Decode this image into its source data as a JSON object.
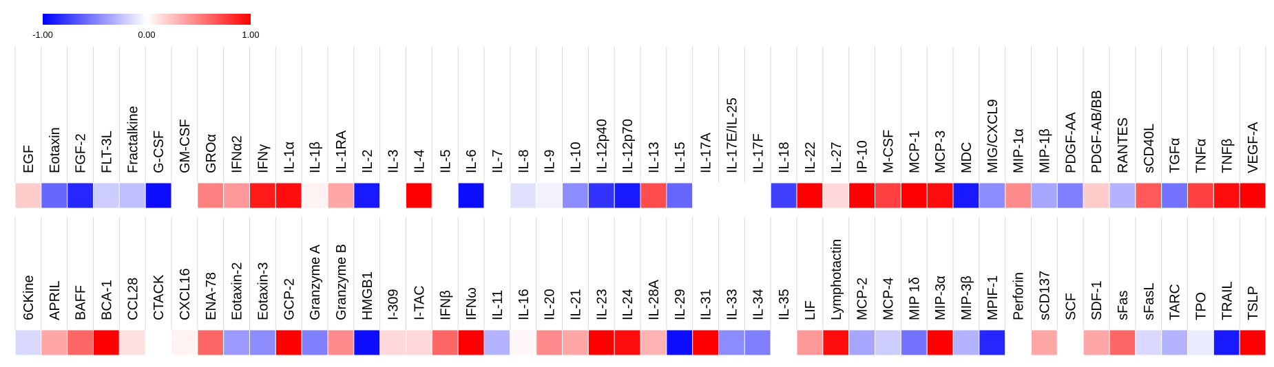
{
  "chart_data": {
    "type": "heatmap",
    "title": "",
    "xlabel": "",
    "ylabel": "",
    "color_scale": {
      "min": -1.0,
      "mid": 0.0,
      "max": 1.0,
      "min_label": "-1.00",
      "mid_label": "0.00",
      "max_label": "1.00",
      "colors": {
        "min": "#0000ff",
        "mid": "#ffffff",
        "max": "#ff0000"
      }
    },
    "rows": [
      {
        "categories": [
          "EGF",
          "Eotaxin",
          "FGF-2",
          "FLT-3L",
          "Fractalkine",
          "G-CSF",
          "GM-CSF",
          "GROα",
          "IFNα2",
          "IFNγ",
          "IL-1α",
          "IL-1β",
          "IL-1RA",
          "IL-2",
          "IL-3",
          "IL-4",
          "IL-5",
          "IL-6",
          "IL-7",
          "IL-8",
          "IL-9",
          "IL-10",
          "IL-12p40",
          "IL-12p70",
          "IL-13",
          "IL-15",
          "IL-17A",
          "IL-17E/IL-25",
          "IL-17F",
          "IL-18",
          "IL-22",
          "IL-27",
          "IP-10",
          "M-CSF",
          "MCP-1",
          "MCP-3",
          "MDC",
          "MIG/CXCL9",
          "MIP-1α",
          "MIP-1β",
          "PDGF-AA",
          "PDGF-AB/BB",
          "RANTES",
          "sCD40L",
          "TGFα",
          "TNFα",
          "TNFβ",
          "VEGF-A"
        ],
        "values": [
          0.2,
          -0.6,
          -0.85,
          -0.2,
          -0.25,
          -0.95,
          0.0,
          0.5,
          0.4,
          0.9,
          0.95,
          0.05,
          0.35,
          -0.9,
          0.0,
          1.0,
          0.0,
          -0.95,
          0.0,
          -0.12,
          -0.05,
          -0.45,
          -0.8,
          -0.9,
          0.7,
          -0.6,
          0.0,
          0.0,
          0.0,
          -0.75,
          1.0,
          0.15,
          1.0,
          0.75,
          1.0,
          0.95,
          -0.9,
          -0.45,
          0.45,
          -0.35,
          -0.5,
          0.2,
          -0.3,
          0.65,
          -0.55,
          0.75,
          0.95,
          1.0
        ]
      },
      {
        "categories": [
          "6CKine",
          "APRIL",
          "BAFF",
          "BCA-1",
          "CCL28",
          "CTACK",
          "CXCL16",
          "ENA-78",
          "Eotaxin-2",
          "Eotaxin-3",
          "GCP-2",
          "Granzyme A",
          "Granzyme B",
          "HMGB1",
          "I-309",
          "I-TAC",
          "IFNβ",
          "IFNω",
          "IL-11",
          "IL-16",
          "IL-20",
          "IL-21",
          "IL-23",
          "IL-24",
          "IL-28A",
          "IL-29",
          "IL-31",
          "IL-33",
          "IL-34",
          "IL-35",
          "LIF",
          "Lymphotactin",
          "MCP-2",
          "MCP-4",
          "MIP 1δ",
          "MIP-3α",
          "MIP-3β",
          "MPIF-1",
          "Perforin",
          "sCD137",
          "SCF",
          "SDF-1",
          "sFas",
          "sFasL",
          "TARC",
          "TPO",
          "TRAIL",
          "TSLP"
        ],
        "values": [
          -0.15,
          0.35,
          0.6,
          1.0,
          0.12,
          0.0,
          0.05,
          0.6,
          -0.4,
          -0.45,
          1.0,
          -0.5,
          0.45,
          -0.95,
          0.15,
          0.15,
          0.6,
          1.0,
          -0.3,
          0.03,
          0.45,
          0.35,
          1.0,
          0.95,
          0.3,
          -0.95,
          1.0,
          -0.45,
          -0.5,
          0.0,
          0.4,
          0.95,
          -0.35,
          -0.2,
          -0.55,
          1.0,
          -0.3,
          -0.85,
          0.0,
          0.35,
          0.0,
          0.35,
          0.6,
          -0.15,
          -0.3,
          -0.08,
          -0.9,
          1.0
        ]
      }
    ]
  }
}
